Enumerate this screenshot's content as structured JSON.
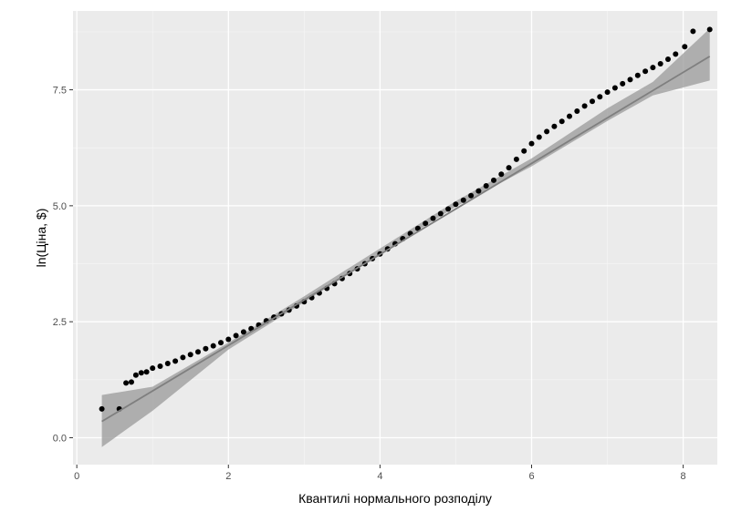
{
  "chart_data": {
    "type": "scatter",
    "subtype": "qq-plot",
    "title": "",
    "xlabel": "Квантилі нормального розподілу",
    "ylabel": "ln(Ціна, $)",
    "xlim": [
      -0.05,
      8.45
    ],
    "ylim": [
      -0.58,
      9.2
    ],
    "x_ticks": [
      0,
      2,
      4,
      6,
      8
    ],
    "x_tick_labels": [
      "0",
      "2",
      "4",
      "6",
      "8"
    ],
    "y_ticks": [
      0.0,
      2.5,
      5.0,
      7.5
    ],
    "y_tick_labels": [
      "0.0",
      "2.5",
      "5.0",
      "7.5"
    ],
    "grid": true,
    "legend": "none",
    "colors": {
      "panel": "#ebebeb",
      "grid_major": "#ffffff",
      "points": "#000000",
      "ribbon": "#999999",
      "line": "#7f7f7f"
    },
    "points": {
      "x": [
        0.33,
        0.56,
        0.65,
        0.72,
        0.78,
        0.85,
        0.92,
        1.0,
        1.1,
        1.2,
        1.3,
        1.4,
        1.5,
        1.6,
        1.7,
        1.8,
        1.9,
        2.0,
        2.1,
        2.2,
        2.3,
        2.4,
        2.5,
        2.6,
        2.7,
        2.8,
        2.9,
        3.0,
        3.1,
        3.2,
        3.3,
        3.4,
        3.5,
        3.6,
        3.7,
        3.8,
        3.9,
        4.0,
        4.1,
        4.2,
        4.3,
        4.4,
        4.5,
        4.6,
        4.7,
        4.8,
        4.9,
        5.0,
        5.1,
        5.2,
        5.3,
        5.4,
        5.5,
        5.6,
        5.7,
        5.8,
        5.9,
        6.0,
        6.1,
        6.2,
        6.3,
        6.4,
        6.5,
        6.6,
        6.7,
        6.8,
        6.9,
        7.0,
        7.1,
        7.2,
        7.3,
        7.4,
        7.5,
        7.6,
        7.7,
        7.8,
        7.9,
        8.02,
        8.13,
        8.35
      ],
      "y": [
        0.62,
        0.62,
        1.18,
        1.2,
        1.35,
        1.4,
        1.42,
        1.5,
        1.54,
        1.6,
        1.65,
        1.73,
        1.79,
        1.85,
        1.92,
        1.98,
        2.05,
        2.12,
        2.2,
        2.28,
        2.35,
        2.43,
        2.52,
        2.6,
        2.67,
        2.75,
        2.84,
        2.93,
        3.02,
        3.12,
        3.22,
        3.32,
        3.43,
        3.54,
        3.64,
        3.75,
        3.86,
        3.96,
        4.07,
        4.18,
        4.29,
        4.4,
        4.51,
        4.62,
        4.73,
        4.83,
        4.93,
        5.03,
        5.12,
        5.22,
        5.32,
        5.43,
        5.55,
        5.68,
        5.82,
        6.0,
        6.18,
        6.34,
        6.48,
        6.6,
        6.71,
        6.82,
        6.93,
        7.04,
        7.15,
        7.25,
        7.35,
        7.45,
        7.54,
        7.63,
        7.72,
        7.81,
        7.9,
        7.98,
        8.06,
        8.16,
        8.27,
        8.43,
        8.76,
        8.8
      ]
    },
    "reference_line": {
      "x": [
        0.33,
        8.35
      ],
      "y": [
        0.35,
        8.22
      ]
    },
    "confidence_band": {
      "x": [
        0.33,
        1.0,
        2.0,
        3.0,
        4.0,
        5.0,
        6.0,
        7.0,
        7.6,
        8.35
      ],
      "upper": [
        0.92,
        1.1,
        2.05,
        3.05,
        4.08,
        5.1,
        6.02,
        7.1,
        7.67,
        8.82
      ],
      "lower": [
        -0.2,
        0.58,
        1.9,
        2.92,
        3.96,
        4.98,
        5.85,
        6.83,
        7.38,
        7.7
      ]
    }
  }
}
